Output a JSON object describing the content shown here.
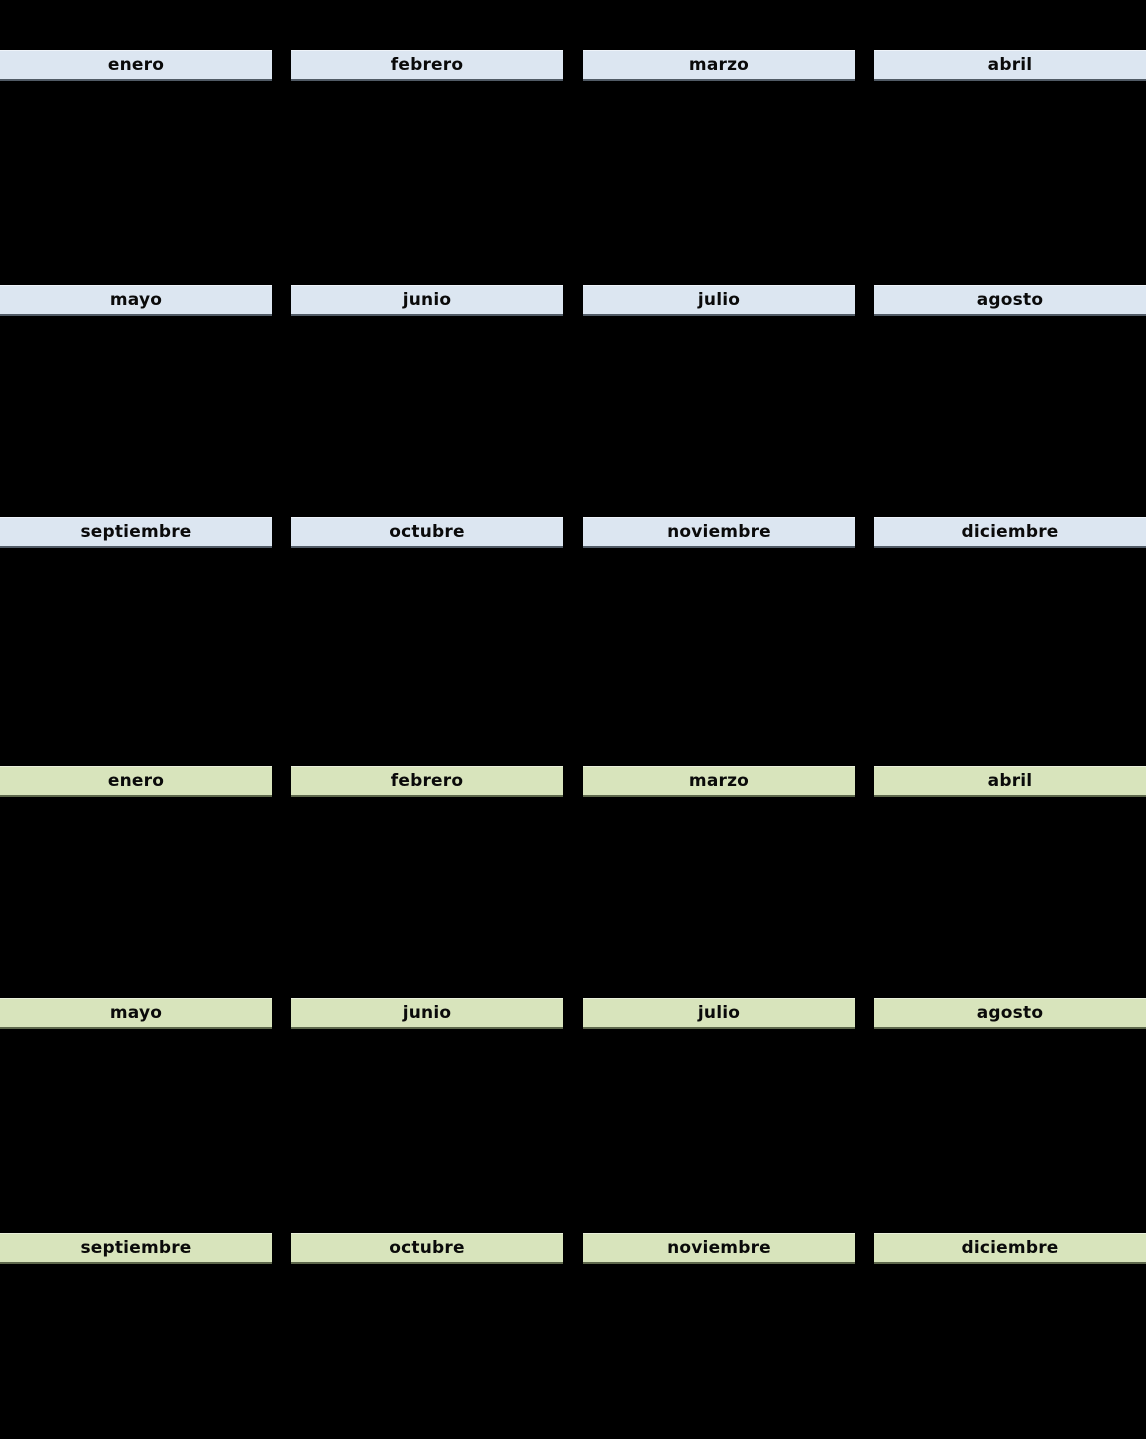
{
  "canvas": {
    "background": "#000000"
  },
  "styles": {
    "header_blue_fill": "#dce6f1",
    "header_green_fill": "#d8e4bc",
    "header_text_color": "#000000"
  },
  "calendar_top": {
    "header_color": "#dce6f1",
    "rows": [
      {
        "months": [
          "enero",
          "febrero",
          "marzo",
          "abril"
        ]
      },
      {
        "months": [
          "mayo",
          "junio",
          "julio",
          "agosto"
        ]
      },
      {
        "months": [
          "septiembre",
          "octubre",
          "noviembre",
          "diciembre"
        ]
      }
    ]
  },
  "calendar_bottom": {
    "header_color": "#d8e4bc",
    "rows": [
      {
        "months": [
          "enero",
          "febrero",
          "marzo",
          "abril"
        ]
      },
      {
        "months": [
          "mayo",
          "junio",
          "julio",
          "agosto"
        ]
      },
      {
        "months": [
          "septiembre",
          "octubre",
          "noviembre",
          "diciembre"
        ]
      }
    ]
  }
}
